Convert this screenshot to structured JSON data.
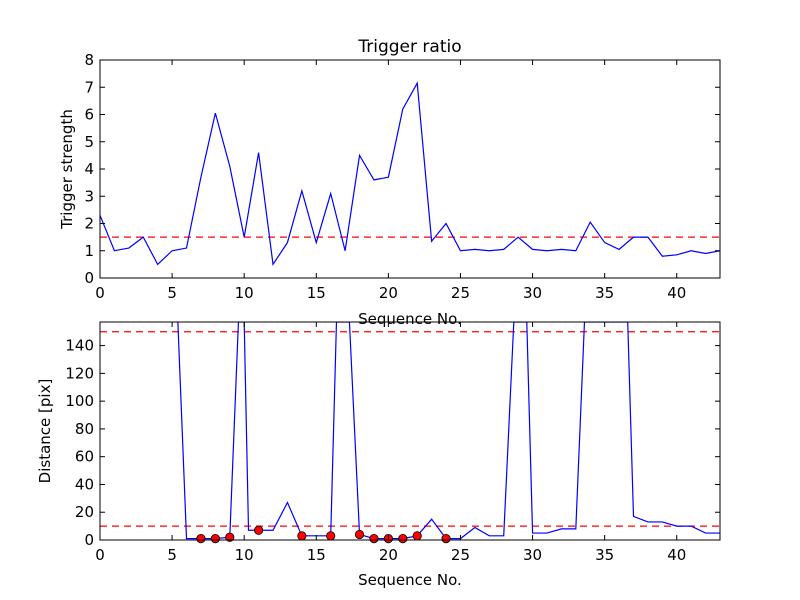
{
  "chart_data": [
    {
      "type": "line",
      "title": "Trigger ratio",
      "xlabel": "Sequence No.",
      "ylabel": "Trigger strength",
      "xlim": [
        0,
        43
      ],
      "ylim": [
        0,
        8
      ],
      "xticks": [
        0,
        5,
        10,
        15,
        20,
        25,
        30,
        35,
        40
      ],
      "yticks": [
        0,
        1,
        2,
        3,
        4,
        5,
        6,
        7,
        8
      ],
      "grid": false,
      "series": [
        {
          "color": "#0000ff",
          "x": [
            0,
            1,
            2,
            3,
            4,
            5,
            6,
            7,
            8,
            9,
            10,
            11,
            12,
            13,
            14,
            15,
            16,
            17,
            18,
            19,
            20,
            21,
            22,
            23,
            24,
            25,
            26,
            27,
            28,
            29,
            30,
            31,
            32,
            33,
            34,
            35,
            36,
            37,
            38,
            39,
            40,
            41,
            42,
            43
          ],
          "y": [
            2.3,
            1.0,
            1.1,
            1.5,
            0.5,
            1.0,
            1.1,
            3.7,
            6.05,
            4.1,
            1.5,
            4.6,
            0.5,
            1.3,
            3.2,
            1.3,
            3.1,
            1.0,
            4.5,
            3.6,
            3.7,
            6.2,
            7.15,
            1.35,
            2.0,
            1.0,
            1.05,
            1.0,
            1.05,
            1.5,
            1.05,
            1.0,
            1.05,
            1.0,
            2.05,
            1.3,
            1.05,
            1.5,
            1.5,
            0.8,
            0.85,
            1.0,
            0.9,
            1.0
          ]
        }
      ],
      "reference_lines": [
        {
          "y": 1.5,
          "color": "#ff0000",
          "style": "dashed"
        }
      ]
    },
    {
      "type": "line",
      "title": "",
      "xlabel": "Sequence No.",
      "ylabel": "Distance [pix]",
      "xlim": [
        0,
        43
      ],
      "ylim": [
        0,
        157
      ],
      "xticks": [
        0,
        5,
        10,
        15,
        20,
        25,
        30,
        35,
        40
      ],
      "yticks": [
        0,
        20,
        40,
        60,
        80,
        100,
        120,
        140
      ],
      "grid": false,
      "series": [
        {
          "color": "#0000ff",
          "x": [
            5.4,
            6,
            7,
            8,
            9,
            9.6,
            10,
            10.3,
            11,
            12,
            13,
            14,
            15,
            16,
            16.4,
            16.9,
            17.3,
            18,
            19,
            20,
            21,
            22,
            23,
            24,
            25,
            26,
            27,
            28,
            28.7,
            29.2,
            29.6,
            30,
            31,
            32,
            33,
            33.6,
            34.2,
            36,
            36.6,
            37,
            38,
            39,
            40,
            41,
            42,
            43
          ],
          "y": [
            157,
            1,
            1,
            1,
            2,
            157,
            157,
            7,
            7,
            7,
            27,
            3,
            3,
            3,
            157,
            157,
            157,
            4,
            1,
            1,
            1,
            3,
            15,
            1,
            1,
            9,
            3,
            3,
            157,
            157,
            157,
            5,
            5,
            8,
            8,
            157,
            157,
            157,
            157,
            17,
            13,
            13,
            10,
            10,
            5,
            5
          ]
        }
      ],
      "markers": {
        "color": "#ff0000",
        "edge": "#000000",
        "points": [
          [
            7,
            1
          ],
          [
            8,
            1
          ],
          [
            9,
            2
          ],
          [
            11,
            7
          ],
          [
            14,
            3
          ],
          [
            16,
            3
          ],
          [
            18,
            4
          ],
          [
            19,
            1
          ],
          [
            20,
            1
          ],
          [
            21,
            1
          ],
          [
            22,
            3
          ],
          [
            24,
            1
          ]
        ]
      },
      "reference_lines": [
        {
          "y": 150,
          "color": "#ff0000",
          "style": "dashed"
        },
        {
          "y": 10,
          "color": "#ff0000",
          "style": "dashed"
        }
      ]
    }
  ]
}
